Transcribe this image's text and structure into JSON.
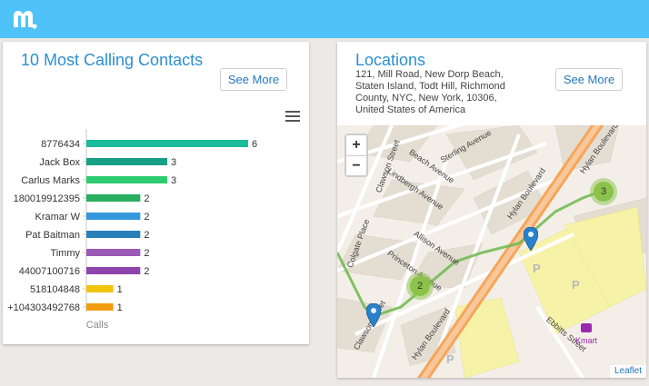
{
  "brand": {
    "logo_icon": "m-logo-icon",
    "accent": "#4fc3f7"
  },
  "calls_card": {
    "title": "10 Most Calling Contacts",
    "see_more": "See More",
    "menu_icon": "hamburger-menu-icon"
  },
  "chart_data": {
    "type": "bar",
    "orientation": "horizontal",
    "categories": [
      "8776434",
      "Jack Box",
      "Carlus Marks",
      "180019912395",
      "Kramar W",
      "Pat Baitman",
      "Timmy",
      "44007100716",
      "518104848",
      "+104303492768"
    ],
    "values": [
      6,
      3,
      3,
      2,
      2,
      2,
      2,
      2,
      1,
      1
    ],
    "colors": [
      "#1abc9c",
      "#16a085",
      "#2ecc71",
      "#27ae60",
      "#3498db",
      "#2980b9",
      "#9b59b6",
      "#8e44ad",
      "#f1c40f",
      "#f39c12"
    ],
    "xlabel": "Calls",
    "xlim": [
      0,
      6
    ],
    "grid": false,
    "data_labels": true
  },
  "locations_card": {
    "title": "Locations",
    "address": "121, Mill Road, New Dorp Beach, Staten Island, Todt Hill, Richmond County, NYC, New York, 10306, United States of America",
    "see_more": "See More",
    "zoom_in": "+",
    "zoom_out": "−",
    "attribution": "Leaflet",
    "streets": [
      "Sterling Avenue",
      "Clawson Street",
      "Beach Avenue",
      "Lindbergh Avenue",
      "Hylan Boulevard",
      "Allison Avenue",
      "Princeton Avenue",
      "Colgate Place",
      "Hylan Boulevard",
      "Ebbitts Street",
      "Hylan Boulevard",
      "Clawson Street"
    ],
    "poi": "Kmart",
    "parking_label": "P",
    "clusters": [
      "3",
      "2"
    ],
    "colors": {
      "route": "#6cb84e",
      "cluster": "#8bc34a",
      "pin": "#2a81cb",
      "road": "#f5a65b"
    }
  }
}
